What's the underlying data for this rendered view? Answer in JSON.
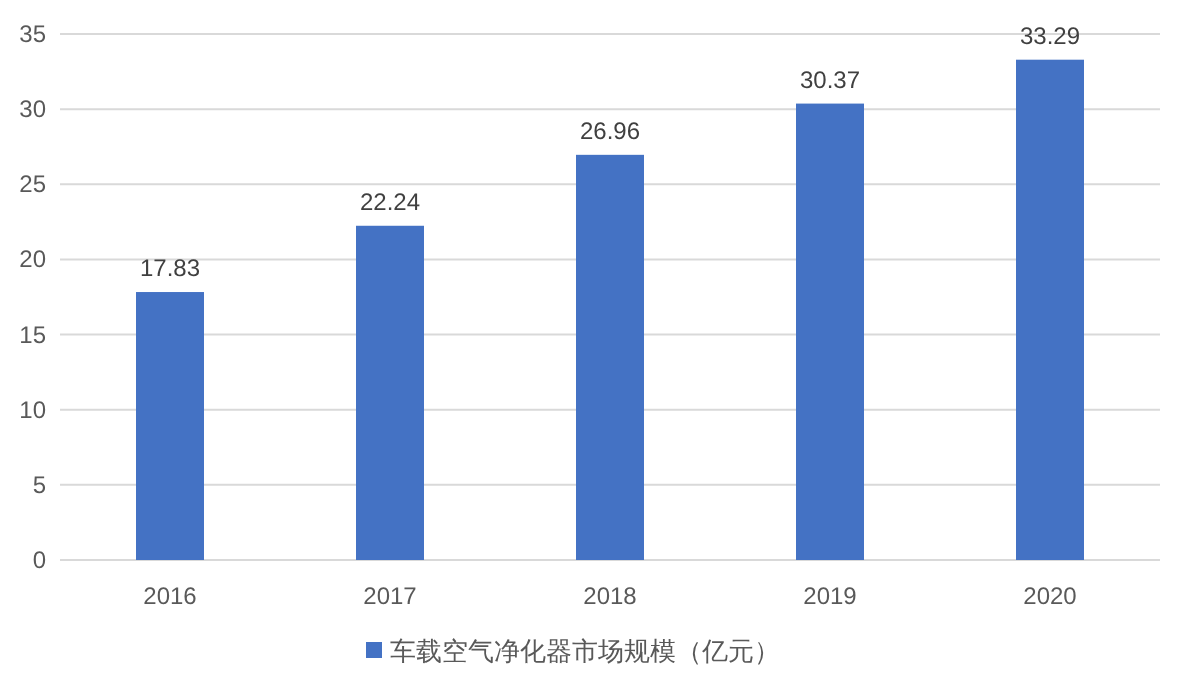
{
  "chart_data": {
    "type": "bar",
    "categories": [
      "2016",
      "2017",
      "2018",
      "2019",
      "2020"
    ],
    "series": [
      {
        "name": "车载空气净化器市场规模（亿元）",
        "color": "#4472c4",
        "values": [
          17.83,
          22.24,
          26.96,
          30.37,
          33.29
        ]
      }
    ],
    "ylim": [
      0,
      35
    ],
    "yticks": [
      0,
      5,
      10,
      15,
      20,
      25,
      30,
      35
    ],
    "grid": "y",
    "legend": "bottom",
    "data_labels": true
  }
}
